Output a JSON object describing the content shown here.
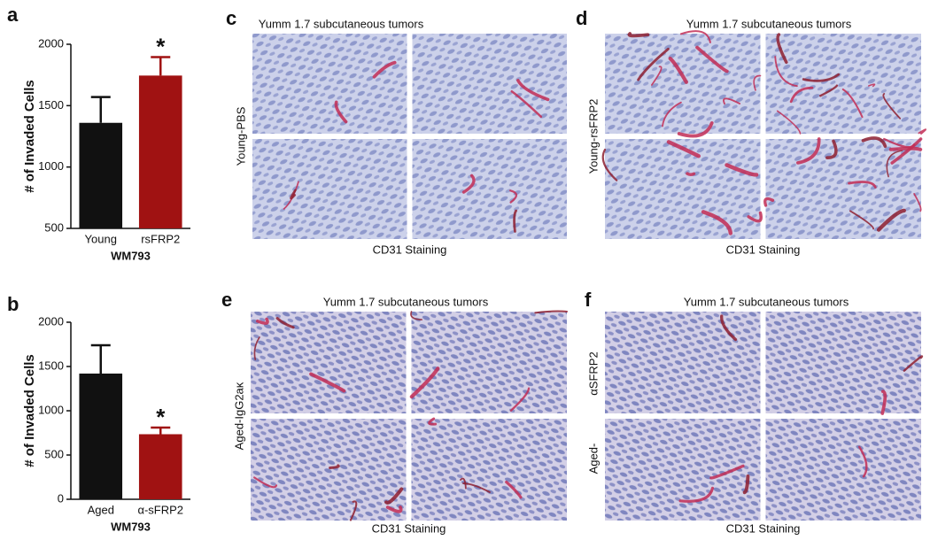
{
  "chart_data": [
    {
      "type": "bar",
      "panel": "a",
      "y_label": "# of Invaded Cells",
      "x_label": "WM793",
      "categories": [
        "Young",
        "rsFRP2"
      ],
      "values": [
        1360,
        1745
      ],
      "errors": [
        210,
        150
      ],
      "significance": [
        null,
        "*"
      ],
      "colors": [
        "#111111",
        "#a01212"
      ],
      "ylim": [
        500,
        2000
      ],
      "yticks": [
        500,
        1000,
        1500,
        2000
      ]
    },
    {
      "type": "bar",
      "panel": "b",
      "y_label": "# of  Invaded Cells",
      "x_label": "WM793",
      "categories": [
        "Aged",
        "α-sFRP2"
      ],
      "values": [
        1420,
        735
      ],
      "errors": [
        320,
        75
      ],
      "significance": [
        null,
        "*"
      ],
      "colors": [
        "#111111",
        "#a01212"
      ],
      "ylim": [
        0,
        2000
      ],
      "yticks": [
        0,
        500,
        1000,
        1500,
        2000
      ]
    }
  ],
  "image_panels": [
    {
      "label": "c",
      "title": "Yumm 1.7 subcutaneous tumors",
      "row_label": [
        "Young-PBS"
      ],
      "caption": "CD31 Staining"
    },
    {
      "label": "d",
      "title": "Yumm 1.7 subcutaneous tumors",
      "row_label": [
        "Young-rsFRP2"
      ],
      "caption": "CD31 Staining"
    },
    {
      "label": "e",
      "title": "Yumm 1.7 subcutaneous tumors",
      "row_label": [
        "Aged-IgG2aκ"
      ],
      "caption": "CD31 Staining"
    },
    {
      "label": "f",
      "title": "Yumm 1.7 subcutaneous tumors",
      "row_label": [
        "Aged-",
        "αSFRP2"
      ],
      "caption": "CD31 Staining"
    }
  ]
}
